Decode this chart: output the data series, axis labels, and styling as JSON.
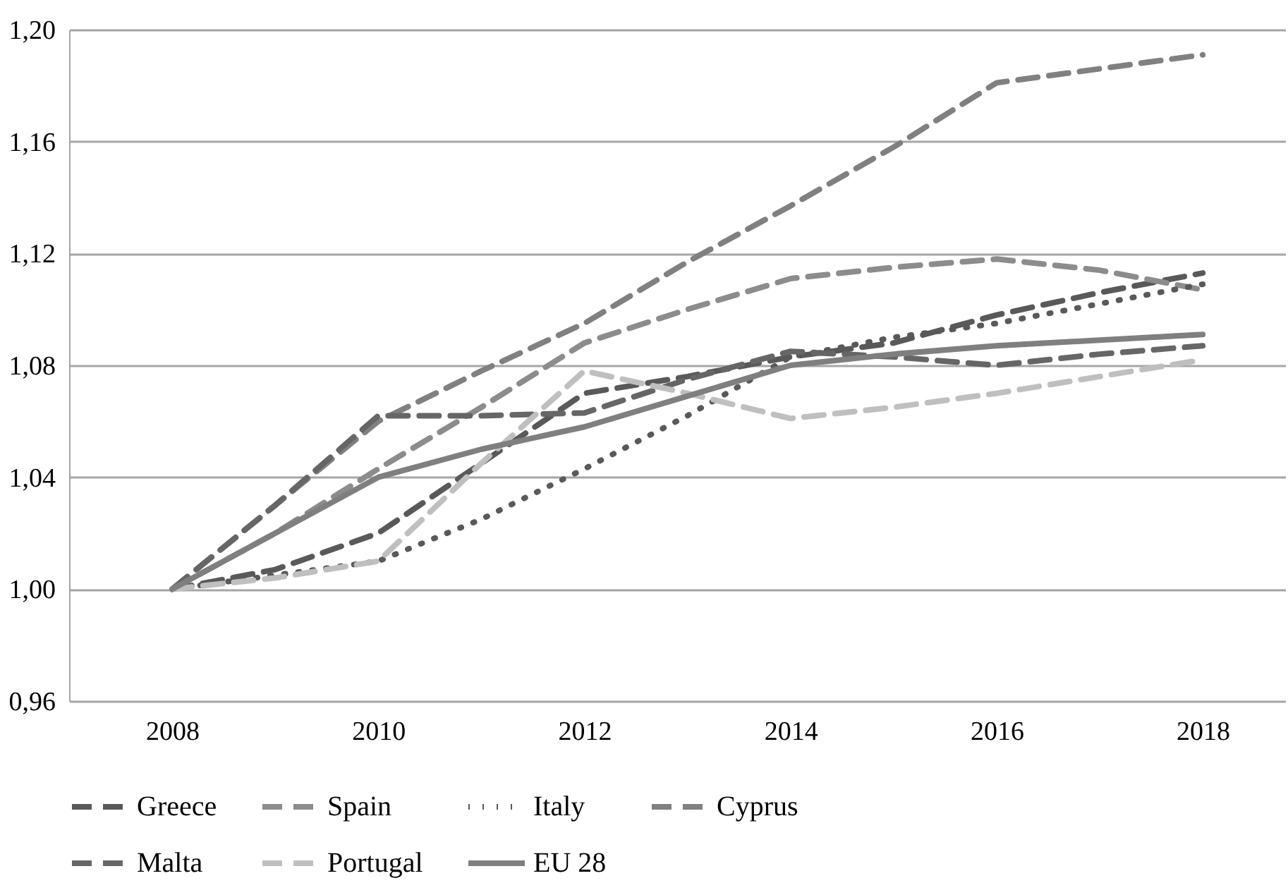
{
  "chart_data": {
    "type": "line",
    "x": [
      2008,
      2009,
      2010,
      2011,
      2012,
      2013,
      2014,
      2015,
      2016,
      2017,
      2018
    ],
    "xlim": [
      2007,
      2018.8
    ],
    "xticks": [
      2008,
      2010,
      2012,
      2014,
      2016,
      2018
    ],
    "ylim": [
      0.96,
      1.2
    ],
    "yticks": [
      {
        "value": 0.96,
        "label": "0,96"
      },
      {
        "value": 1.0,
        "label": "1,00"
      },
      {
        "value": 1.04,
        "label": "1,04"
      },
      {
        "value": 1.08,
        "label": "1,08"
      },
      {
        "value": 1.12,
        "label": "1,12"
      },
      {
        "value": 1.16,
        "label": "1,16"
      },
      {
        "value": 1.2,
        "label": "1,20"
      }
    ],
    "grid": "y",
    "legend": "bottom",
    "marker": "none",
    "series": [
      {
        "name": "Greece",
        "color": "#595959",
        "line_style": "dashed",
        "values": [
          1.0,
          1.007,
          1.02,
          1.045,
          1.07,
          1.076,
          1.083,
          1.088,
          1.098,
          1.106,
          1.113
        ]
      },
      {
        "name": "Spain",
        "color": "#8c8c8c",
        "line_style": "dashed",
        "values": [
          1.0,
          1.02,
          1.043,
          1.065,
          1.088,
          1.1,
          1.111,
          1.115,
          1.118,
          1.114,
          1.107
        ]
      },
      {
        "name": "Italy",
        "color": "#595959",
        "line_style": "dotted",
        "values": [
          1.0,
          1.005,
          1.01,
          1.025,
          1.043,
          1.062,
          1.083,
          1.09,
          1.095,
          1.102,
          1.109
        ]
      },
      {
        "name": "Cyprus",
        "color": "#808080",
        "line_style": "dashed",
        "values": [
          1.0,
          1.03,
          1.06,
          1.078,
          1.095,
          1.117,
          1.137,
          1.158,
          1.181,
          1.186,
          1.191
        ]
      },
      {
        "name": "Malta",
        "color": "#666666",
        "line_style": "dashed",
        "values": [
          1.0,
          1.03,
          1.062,
          1.062,
          1.063,
          1.075,
          1.085,
          1.083,
          1.08,
          1.084,
          1.087
        ]
      },
      {
        "name": "Portugal",
        "color": "#bfbfbf",
        "line_style": "dashed",
        "values": [
          1.0,
          1.004,
          1.01,
          1.045,
          1.078,
          1.07,
          1.061,
          1.065,
          1.07,
          1.076,
          1.082
        ]
      },
      {
        "name": "EU 28",
        "color": "#7f7f7f",
        "line_style": "solid",
        "values": [
          1.0,
          1.02,
          1.04,
          1.05,
          1.058,
          1.069,
          1.08,
          1.084,
          1.087,
          1.089,
          1.091
        ]
      }
    ]
  }
}
